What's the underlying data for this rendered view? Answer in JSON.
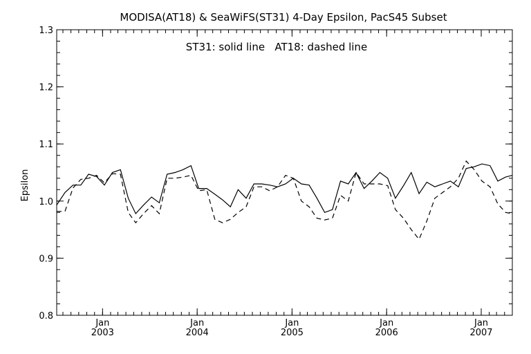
{
  "chart_data": {
    "type": "line",
    "title": "MODISA(AT18) & SeaWiFS(ST31) 4-Day Epsilon, PacS45 Subset",
    "annotation": "ST31: solid line   AT18: dashed line",
    "xlabel": "",
    "ylabel": "Epsilon",
    "ylim": [
      0.8,
      1.3
    ],
    "xlim": [
      "2002-07-08",
      "2007-05-01"
    ],
    "yticks": [
      "0.8",
      "0.9",
      "1.0",
      "1.1",
      "1.2",
      "1.3"
    ],
    "xticks": [
      {
        "date": "2003-01-01",
        "month": "Jan",
        "year": "2003"
      },
      {
        "date": "2004-01-01",
        "month": "Jan",
        "year": "2004"
      },
      {
        "date": "2005-01-01",
        "month": "Jan",
        "year": "2005"
      },
      {
        "date": "2006-01-01",
        "month": "Jan",
        "year": "2006"
      },
      {
        "date": "2007-01-01",
        "month": "Jan",
        "year": "2007"
      }
    ],
    "grid": false,
    "series": [
      {
        "name": "ST31",
        "style": "solid",
        "color": "#000000",
        "x": [
          "2002-07-08",
          "2002-08-09",
          "2002-09-09",
          "2002-10-09",
          "2002-11-08",
          "2002-12-09",
          "2003-01-08",
          "2003-02-08",
          "2003-03-11",
          "2003-04-10",
          "2003-05-09",
          "2003-06-08",
          "2003-07-09",
          "2003-08-08",
          "2003-09-07",
          "2003-10-08",
          "2003-11-07",
          "2003-12-08",
          "2004-01-07",
          "2004-02-07",
          "2004-03-09",
          "2004-04-08",
          "2004-05-08",
          "2004-06-07",
          "2004-07-08",
          "2004-08-07",
          "2004-09-06",
          "2004-10-07",
          "2004-11-06",
          "2004-12-07",
          "2005-01-06",
          "2005-02-06",
          "2005-03-08",
          "2005-04-07",
          "2005-05-07",
          "2005-06-06",
          "2005-07-07",
          "2005-08-06",
          "2005-09-05",
          "2005-10-06",
          "2005-11-05",
          "2005-12-06",
          "2006-01-05",
          "2006-02-04",
          "2006-03-07",
          "2006-04-06",
          "2006-05-06",
          "2006-06-05",
          "2006-07-06",
          "2006-08-05",
          "2006-09-04",
          "2006-10-05",
          "2006-11-04",
          "2006-12-05",
          "2007-01-04",
          "2007-02-04",
          "2007-03-06",
          "2007-04-05",
          "2007-05-01"
        ],
        "values": [
          0.993,
          1.015,
          1.028,
          1.028,
          1.047,
          1.043,
          1.028,
          1.05,
          1.055,
          1.005,
          0.978,
          0.993,
          1.007,
          0.997,
          1.047,
          1.05,
          1.055,
          1.062,
          1.022,
          1.022,
          1.012,
          1.002,
          0.99,
          1.02,
          1.005,
          1.03,
          1.03,
          1.028,
          1.025,
          1.03,
          1.04,
          1.03,
          1.028,
          1.005,
          0.98,
          0.985,
          1.035,
          1.03,
          1.05,
          1.022,
          1.035,
          1.05,
          1.04,
          1.005,
          1.027,
          1.05,
          1.013,
          1.033,
          1.025,
          1.03,
          1.035,
          1.025,
          1.057,
          1.06,
          1.065,
          1.062,
          1.035,
          1.042,
          1.045
        ]
      },
      {
        "name": "AT18",
        "style": "dashed",
        "color": "#000000",
        "x": [
          "2002-07-08",
          "2002-08-09",
          "2002-09-09",
          "2002-10-09",
          "2002-11-08",
          "2002-12-09",
          "2003-01-08",
          "2003-02-08",
          "2003-03-11",
          "2003-04-10",
          "2003-05-09",
          "2003-06-08",
          "2003-07-09",
          "2003-08-08",
          "2003-09-07",
          "2003-10-08",
          "2003-11-07",
          "2003-12-08",
          "2004-01-07",
          "2004-02-07",
          "2004-03-09",
          "2004-04-08",
          "2004-05-08",
          "2004-06-07",
          "2004-07-08",
          "2004-08-07",
          "2004-09-06",
          "2004-10-07",
          "2004-11-06",
          "2004-12-07",
          "2005-01-06",
          "2005-02-06",
          "2005-03-08",
          "2005-04-07",
          "2005-05-07",
          "2005-06-06",
          "2005-07-07",
          "2005-08-06",
          "2005-09-05",
          "2005-10-06",
          "2005-11-05",
          "2005-12-06",
          "2006-01-05",
          "2006-02-04",
          "2006-03-07",
          "2006-04-06",
          "2006-05-06",
          "2006-06-05",
          "2006-07-06",
          "2006-08-05",
          "2006-09-04",
          "2006-10-05",
          "2006-11-04",
          "2006-12-05",
          "2007-01-04",
          "2007-02-04",
          "2007-03-06",
          "2007-04-05",
          "2007-05-01"
        ],
        "values": [
          0.982,
          0.982,
          1.023,
          1.038,
          1.04,
          1.045,
          1.032,
          1.048,
          1.047,
          0.98,
          0.962,
          0.978,
          0.992,
          0.978,
          1.04,
          1.04,
          1.042,
          1.045,
          1.018,
          1.02,
          0.968,
          0.962,
          0.968,
          0.98,
          0.99,
          1.025,
          1.025,
          1.018,
          1.025,
          1.045,
          1.04,
          1.0,
          0.99,
          0.97,
          0.967,
          0.97,
          1.01,
          1.0,
          1.05,
          1.03,
          1.03,
          1.03,
          1.027,
          0.985,
          0.97,
          0.95,
          0.933,
          0.965,
          1.005,
          1.015,
          1.025,
          1.04,
          1.07,
          1.055,
          1.035,
          1.025,
          0.995,
          0.98,
          0.978
        ]
      }
    ]
  }
}
